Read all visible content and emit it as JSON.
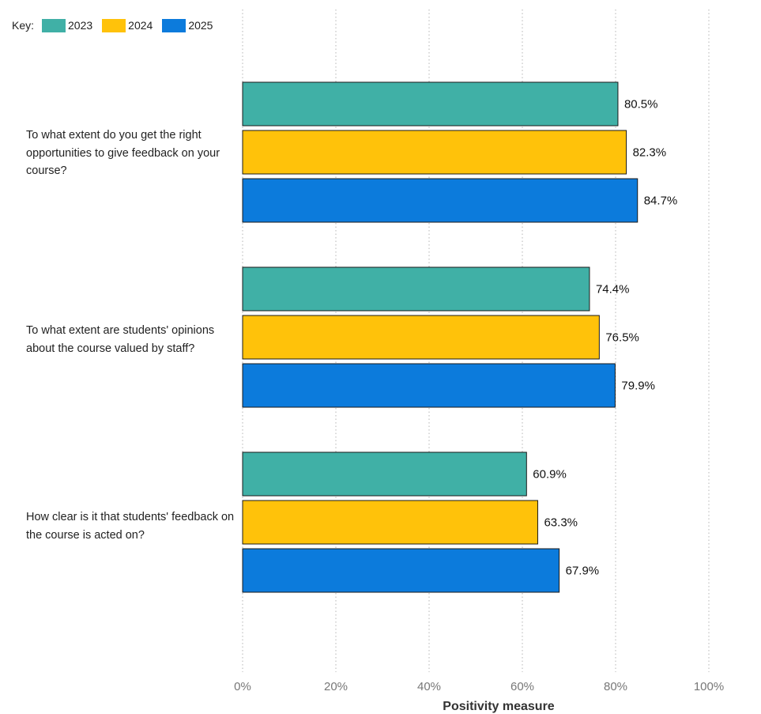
{
  "legend": {
    "key_label": "Key:",
    "items": [
      {
        "label": "2023",
        "color": "#40b0a6"
      },
      {
        "label": "2024",
        "color": "#ffc20a"
      },
      {
        "label": "2025",
        "color": "#0c7bdc"
      }
    ]
  },
  "chart_data": {
    "type": "bar",
    "orientation": "horizontal",
    "categories": [
      "To what extent do you get the right opportunities to give feedback on your course?",
      "To what extent are students' opinions about the course valued by staff?",
      "How clear is it that students' feedback on the course is acted on?"
    ],
    "series": [
      {
        "name": "2023",
        "color": "#40b0a6",
        "values": [
          80.5,
          74.4,
          60.9
        ],
        "labels": [
          "80.5%",
          "74.4%",
          "60.9%"
        ]
      },
      {
        "name": "2024",
        "color": "#ffc20a",
        "values": [
          82.3,
          76.5,
          63.3
        ],
        "labels": [
          "82.3%",
          "76.5%",
          "63.3%"
        ]
      },
      {
        "name": "2025",
        "color": "#0c7bdc",
        "values": [
          84.7,
          79.9,
          67.9
        ],
        "labels": [
          "84.7%",
          "79.9%",
          "67.9%"
        ]
      }
    ],
    "xlim": [
      0,
      100
    ],
    "xticks": [
      0,
      20,
      40,
      60,
      80,
      100
    ],
    "xtick_labels": [
      "0%",
      "20%",
      "40%",
      "60%",
      "80%",
      "100%"
    ],
    "xlabel": "Positivity measure",
    "ylabel": "",
    "grid": "vertical dotted",
    "legend_position": "top-left"
  }
}
